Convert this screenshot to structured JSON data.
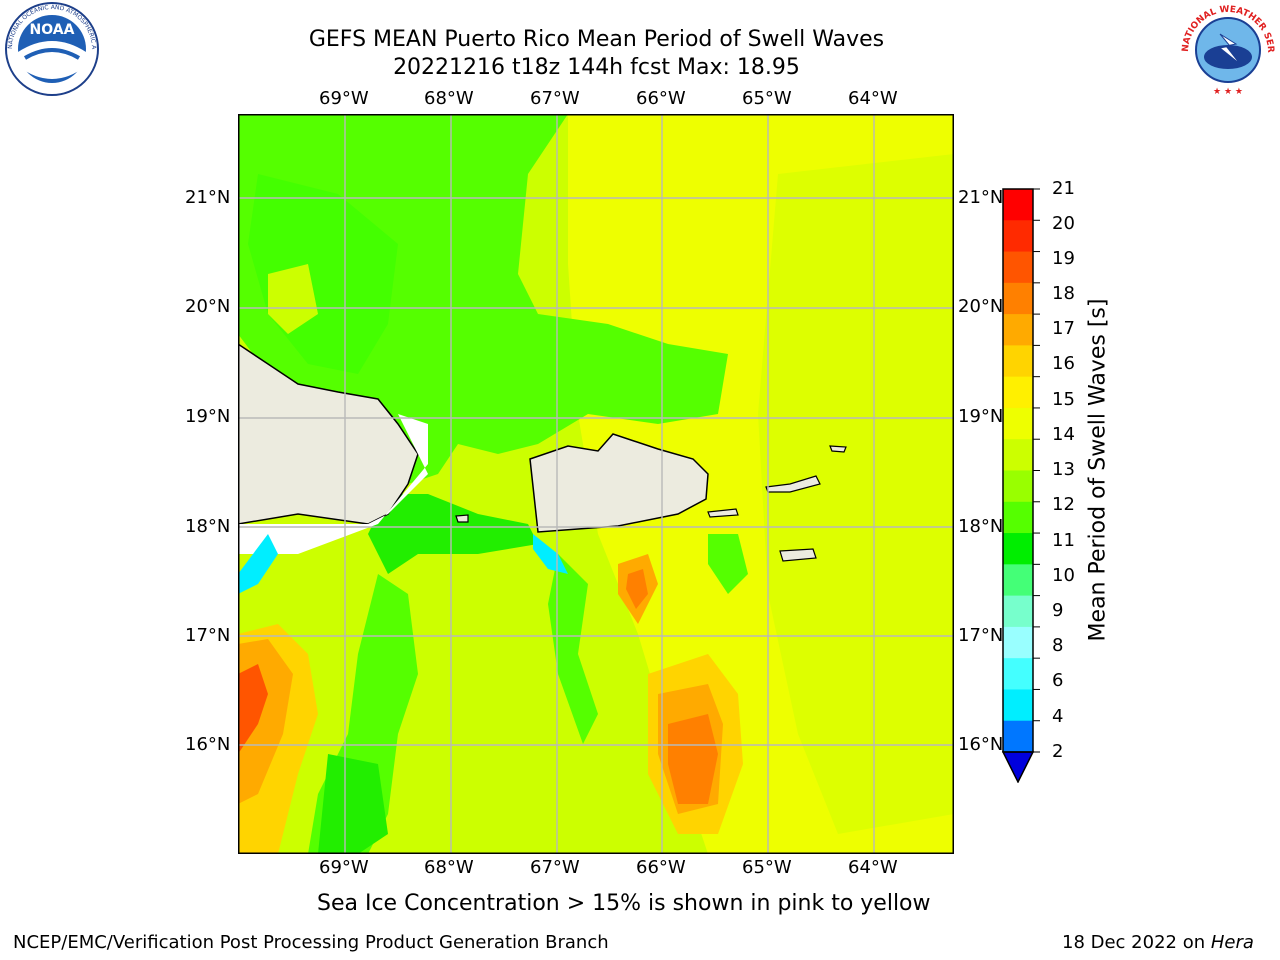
{
  "title": {
    "line1": "GEFS MEAN Puerto Rico Mean Period of Swell Waves",
    "line2": "20221216 t18z 144h fcst   Max: 18.95"
  },
  "longitude_ticks": [
    "69°W",
    "68°W",
    "67°W",
    "66°W",
    "65°W",
    "64°W"
  ],
  "latitude_ticks": [
    "21°N",
    "20°N",
    "19°N",
    "18°N",
    "17°N",
    "16°N"
  ],
  "colorbar": {
    "label": "Mean Period of Swell Waves [s]",
    "ticks": [
      "21",
      "20",
      "19",
      "18",
      "17",
      "16",
      "15",
      "14",
      "13",
      "12",
      "11",
      "10",
      "9",
      "8",
      "6",
      "4",
      "2"
    ],
    "colors": [
      "#ff0000",
      "#ff2a00",
      "#ff5500",
      "#ff8000",
      "#ffaa00",
      "#ffd400",
      "#fff000",
      "#eeff00",
      "#ccff00",
      "#99ff00",
      "#55ff00",
      "#00ee00",
      "#44ff77",
      "#77ffcc",
      "#99ffff",
      "#44ffff",
      "#00eeff",
      "#0077ff",
      "#0000dd"
    ]
  },
  "annotation": "Sea Ice Concentration > 15% is shown in pink to yellow",
  "footer": {
    "left": "NCEP/EMC/Verification Post Processing Product Generation Branch",
    "date": "18 Dec 2022 on",
    "machine": "Hera"
  },
  "logos": {
    "noaa": "NOAA",
    "noaa_ring": "NATIONAL OCEANIC AND ATMOSPHERIC ADMINISTRATION · U.S. DEPARTMENT OF COMMERCE",
    "nws_ring": "NATIONAL WEATHER SERVICE"
  },
  "field_colors": {
    "green": "#55ff00",
    "dark_green": "#22ee00",
    "yellow_green": "#ccff00",
    "yellow": "#eeff00",
    "orange": "#ffaa00",
    "dark_orange": "#ff8000",
    "red_orange": "#ff5500",
    "cyan": "#00eeff",
    "land": "#ecebdf"
  }
}
